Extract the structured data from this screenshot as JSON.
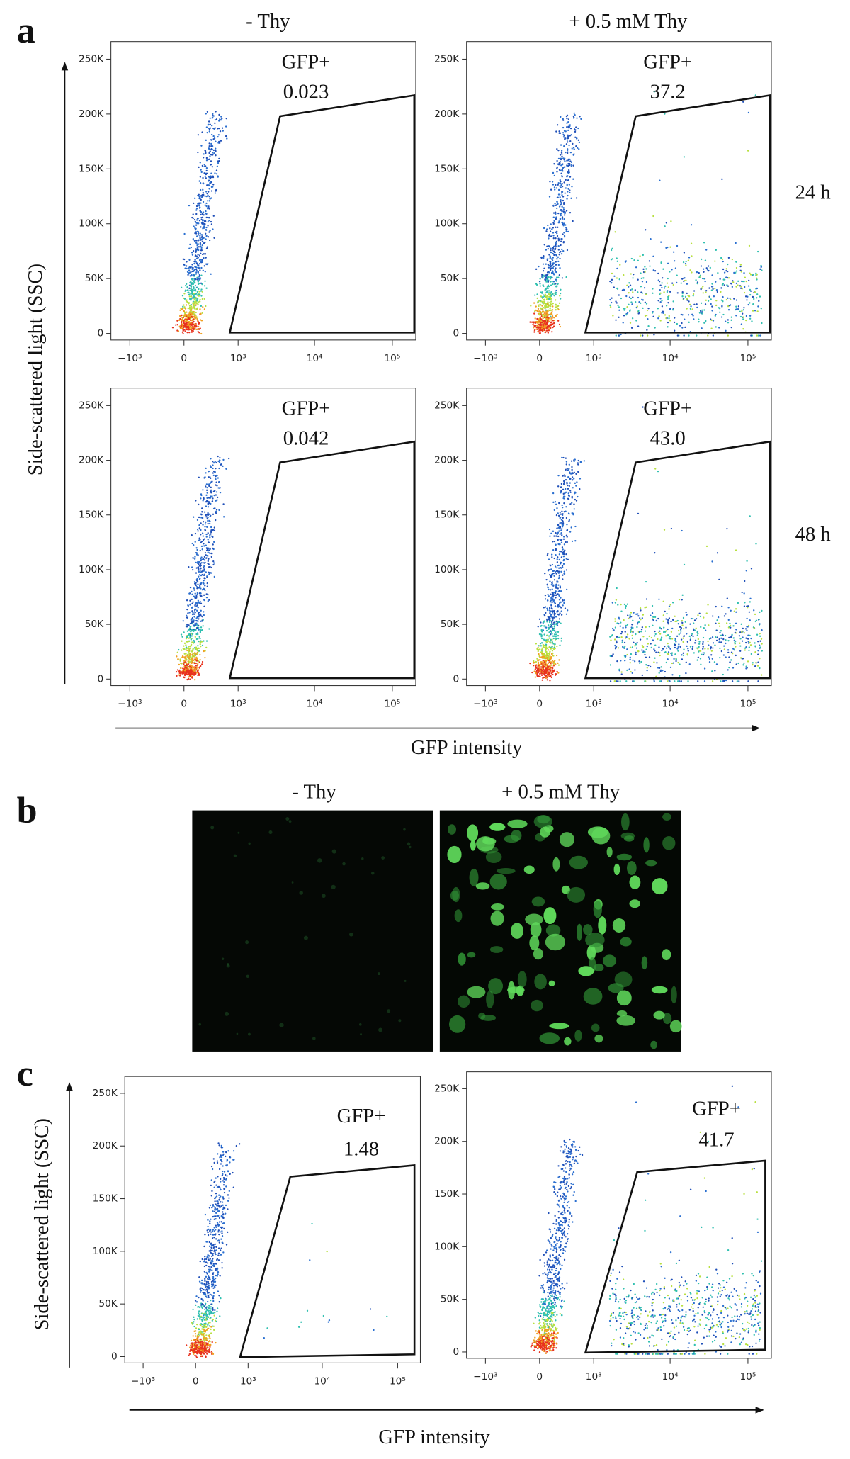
{
  "figure": {
    "a": {
      "letter": "a",
      "col_headers": [
        "- Thy",
        "+ 0.5 mM Thy"
      ],
      "row_labels": [
        "24 h",
        "48 h"
      ],
      "y_label": "Side-scattered light (SSC)",
      "x_label": "GFP intensity"
    },
    "b": {
      "letter": "b",
      "col_headers": [
        "- Thy",
        "+ 0.5 mM Thy"
      ]
    },
    "c": {
      "letter": "c",
      "y_label": "Side-scattered light (SSC)",
      "x_label": "GFP intensity"
    }
  },
  "chart_data": [
    {
      "type": "scatter",
      "gate_label": "GFP+",
      "gate_percent": 0.023,
      "xscale": "biexponential",
      "xlim": [
        -1800,
        200000
      ],
      "ylim": [
        -6000,
        266000
      ],
      "xticks": [
        {
          "value": -1000,
          "label": "−10³"
        },
        0,
        {
          "value": 1000,
          "label": "10³"
        },
        {
          "value": 10000,
          "label": "10⁴"
        },
        {
          "value": 100000,
          "label": "10⁵"
        }
      ],
      "yticks": [
        0,
        {
          "value": 50000,
          "label": "50K"
        },
        {
          "value": 100000,
          "label": "100K"
        },
        {
          "value": 150000,
          "label": "150K"
        },
        {
          "value": 200000,
          "label": "200K"
        },
        {
          "value": 250000,
          "label": "250K"
        }
      ]
    },
    {
      "type": "scatter",
      "gate_label": "GFP+",
      "gate_percent": 37.2,
      "xscale": "biexponential",
      "xlim": [
        -1800,
        200000
      ],
      "ylim": [
        -6000,
        266000
      ],
      "xticks": [
        {
          "value": -1000,
          "label": "−10³"
        },
        0,
        {
          "value": 1000,
          "label": "10³"
        },
        {
          "value": 10000,
          "label": "10⁴"
        },
        {
          "value": 100000,
          "label": "10⁵"
        }
      ],
      "yticks": [
        0,
        {
          "value": 50000,
          "label": "50K"
        },
        {
          "value": 100000,
          "label": "100K"
        },
        {
          "value": 150000,
          "label": "150K"
        },
        {
          "value": 200000,
          "label": "200K"
        },
        {
          "value": 250000,
          "label": "250K"
        }
      ]
    },
    {
      "type": "scatter",
      "gate_label": "GFP+",
      "gate_percent": 0.042,
      "xscale": "biexponential",
      "xlim": [
        -1800,
        200000
      ],
      "ylim": [
        -6000,
        266000
      ],
      "xticks": [
        {
          "value": -1000,
          "label": "−10³"
        },
        0,
        {
          "value": 1000,
          "label": "10³"
        },
        {
          "value": 10000,
          "label": "10⁴"
        },
        {
          "value": 100000,
          "label": "10⁵"
        }
      ],
      "yticks": [
        0,
        {
          "value": 50000,
          "label": "50K"
        },
        {
          "value": 100000,
          "label": "100K"
        },
        {
          "value": 150000,
          "label": "150K"
        },
        {
          "value": 200000,
          "label": "200K"
        },
        {
          "value": 250000,
          "label": "250K"
        }
      ]
    },
    {
      "type": "scatter",
      "gate_label": "GFP+",
      "gate_percent": 43.0,
      "gate_percent_label": "43.0",
      "xscale": "biexponential",
      "xlim": [
        -1800,
        200000
      ],
      "ylim": [
        -6000,
        266000
      ],
      "xticks": [
        {
          "value": -1000,
          "label": "−10³"
        },
        0,
        {
          "value": 1000,
          "label": "10³"
        },
        {
          "value": 10000,
          "label": "10⁴"
        },
        {
          "value": 100000,
          "label": "10⁵"
        }
      ],
      "yticks": [
        0,
        {
          "value": 50000,
          "label": "50K"
        },
        {
          "value": 100000,
          "label": "100K"
        },
        {
          "value": 150000,
          "label": "150K"
        },
        {
          "value": 200000,
          "label": "200K"
        },
        {
          "value": 250000,
          "label": "250K"
        }
      ]
    },
    {
      "type": "scatter",
      "gate_label": "GFP+",
      "gate_percent": 1.48,
      "xscale": "biexponential",
      "xlim": [
        -1800,
        200000
      ],
      "ylim": [
        -6000,
        266000
      ],
      "xticks": [
        {
          "value": -1000,
          "label": "−10³"
        },
        0,
        {
          "value": 1000,
          "label": "10³"
        },
        {
          "value": 10000,
          "label": "10⁴"
        },
        {
          "value": 100000,
          "label": "10⁵"
        }
      ],
      "yticks": [
        0,
        {
          "value": 50000,
          "label": "50K"
        },
        {
          "value": 100000,
          "label": "100K"
        },
        {
          "value": 150000,
          "label": "150K"
        },
        {
          "value": 200000,
          "label": "200K"
        },
        {
          "value": 250000,
          "label": "250K"
        }
      ]
    },
    {
      "type": "scatter",
      "gate_label": "GFP+",
      "gate_percent": 41.7,
      "xscale": "biexponential",
      "xlim": [
        -1800,
        200000
      ],
      "ylim": [
        -6000,
        266000
      ],
      "xticks": [
        {
          "value": -1000,
          "label": "−10³"
        },
        0,
        {
          "value": 1000,
          "label": "10³"
        },
        {
          "value": 10000,
          "label": "10⁴"
        },
        {
          "value": 100000,
          "label": "10⁵"
        }
      ],
      "yticks": [
        0,
        {
          "value": 50000,
          "label": "50K"
        },
        {
          "value": 100000,
          "label": "100K"
        },
        {
          "value": 150000,
          "label": "150K"
        },
        {
          "value": 200000,
          "label": "200K"
        },
        {
          "value": 250000,
          "label": "250K"
        }
      ]
    }
  ]
}
